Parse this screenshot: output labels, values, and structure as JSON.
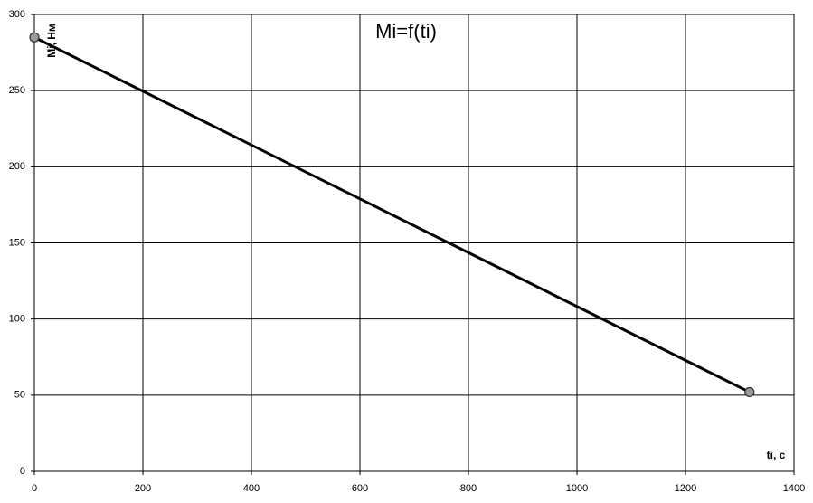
{
  "chart_data": {
    "type": "line",
    "title": "Mi=f(ti)",
    "x_label": "ti, с",
    "y_label": "Mi, Нм",
    "x": [
      0,
      1318
    ],
    "series": [
      {
        "name": "Mi",
        "color": "#000000",
        "marker_color": "#999999",
        "values": [
          285,
          52
        ]
      }
    ],
    "xlim": [
      0,
      1400
    ],
    "xticks": [
      0,
      200,
      400,
      600,
      800,
      1000,
      1200,
      1400
    ],
    "ylim": [
      0,
      300
    ],
    "yticks": [
      0,
      50,
      100,
      150,
      200,
      250,
      300
    ],
    "grid": true
  }
}
